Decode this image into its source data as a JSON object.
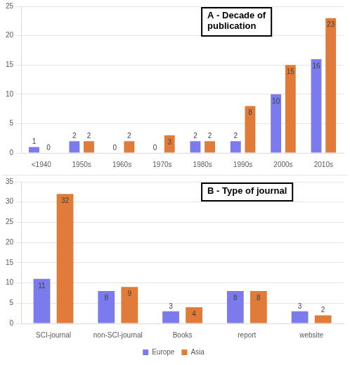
{
  "chart_data": [
    {
      "type": "bar",
      "title": "A - Decade of publication",
      "categories": [
        "<1940",
        "1950s",
        "1960s",
        "1970s",
        "1980s",
        "1990s",
        "2000s",
        "2010s"
      ],
      "series": [
        {
          "name": "Europe",
          "color": "#7b7bee",
          "values": [
            1,
            2,
            0,
            0,
            2,
            2,
            10,
            16
          ]
        },
        {
          "name": "Asia",
          "color": "#e07b39",
          "values": [
            0,
            2,
            2,
            3,
            2,
            8,
            15,
            23
          ]
        }
      ],
      "ylim": [
        0,
        25
      ],
      "yticks": [
        0,
        5,
        10,
        15,
        20,
        25
      ],
      "grid": true,
      "data_labels": true
    },
    {
      "type": "bar",
      "title": "B - Type of journal",
      "categories": [
        "SCI-journal",
        "non-SCI-journal",
        "Books",
        "report",
        "website"
      ],
      "series": [
        {
          "name": "Europe",
          "color": "#7b7bee",
          "values": [
            11,
            8,
            3,
            8,
            3
          ]
        },
        {
          "name": "Asia",
          "color": "#e07b39",
          "values": [
            32,
            9,
            4,
            8,
            2
          ]
        }
      ],
      "ylim": [
        0,
        35
      ],
      "yticks": [
        0,
        5,
        10,
        15,
        20,
        25,
        30,
        35
      ],
      "grid": true,
      "data_labels": true,
      "legend": "bottom"
    }
  ]
}
